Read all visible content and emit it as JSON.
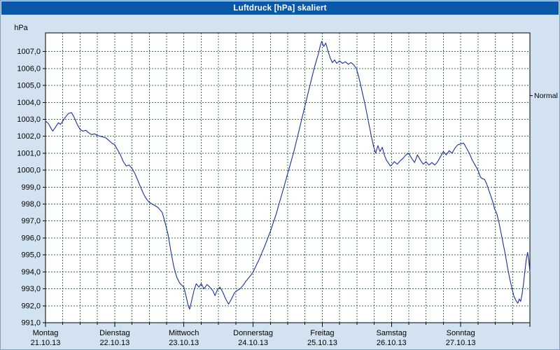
{
  "window": {
    "title": "Luftdruck [hPa] skaliert"
  },
  "colors": {
    "titlebar": "#0b58a8",
    "titlebar_text": "#ffffff",
    "window_bg": "#d2e2f0",
    "window_border": "#7da2c4",
    "plot_bg": "#ffffff",
    "grid": "#35714b",
    "axis": "#000000",
    "line": "#1c2f9e"
  },
  "chart_data": {
    "type": "line",
    "title": "Luftdruck [hPa] skaliert",
    "ylabel": "hPa",
    "ylim": [
      991,
      1008.1
    ],
    "y_tick_step": 1,
    "y_tick_labels": [
      "991,0",
      "992,0",
      "993,0",
      "994,0",
      "995,0",
      "996,0",
      "997,0",
      "998,0",
      "999,0",
      "1000,0",
      "1001,0",
      "1002,0",
      "1003,0",
      "1004,0",
      "1005,0",
      "1006,0",
      "1007,0"
    ],
    "x_range_hours": [
      0,
      168
    ],
    "x_minor_grid_hours": 6,
    "x_day_labels": [
      {
        "name": "Montag",
        "date": "21.10.13"
      },
      {
        "name": "Dienstag",
        "date": "22.10.13"
      },
      {
        "name": "Mittwoch",
        "date": "23.10.13"
      },
      {
        "name": "Donnerstag",
        "date": "24.10.13"
      },
      {
        "name": "Freitag",
        "date": "25.10.13"
      },
      {
        "name": "Samstag",
        "date": "26.10.13"
      },
      {
        "name": "Sonntag",
        "date": "27.10.13"
      }
    ],
    "annotation": {
      "label": "Normal",
      "value": 1004.4
    },
    "grid": true,
    "legend_position": "none",
    "series": [
      {
        "name": "Luftdruck",
        "color": "#1c2f9e",
        "points": [
          [
            0,
            1002.9
          ],
          [
            1,
            1002.75
          ],
          [
            2,
            1002.45
          ],
          [
            2.5,
            1002.3
          ],
          [
            3.5,
            1002.55
          ],
          [
            4.5,
            1002.8
          ],
          [
            5.2,
            1002.7
          ],
          [
            6,
            1002.9
          ],
          [
            7,
            1003.15
          ],
          [
            8,
            1003.35
          ],
          [
            9,
            1003.4
          ],
          [
            10,
            1003.1
          ],
          [
            11,
            1002.7
          ],
          [
            12,
            1002.4
          ],
          [
            13,
            1002.3
          ],
          [
            14,
            1002.35
          ],
          [
            15,
            1002.2
          ],
          [
            16,
            1002.1
          ],
          [
            17,
            1002.15
          ],
          [
            18,
            1002.05
          ],
          [
            19,
            1002.0
          ],
          [
            20,
            1001.95
          ],
          [
            21,
            1001.9
          ],
          [
            22,
            1001.75
          ],
          [
            23,
            1001.6
          ],
          [
            24,
            1001.5
          ],
          [
            25,
            1001.2
          ],
          [
            26,
            1000.9
          ],
          [
            27,
            1000.5
          ],
          [
            28,
            1000.25
          ],
          [
            29,
            1000.3
          ],
          [
            30,
            1000.1
          ],
          [
            31,
            999.8
          ],
          [
            32,
            999.4
          ],
          [
            33,
            999.0
          ],
          [
            34,
            998.6
          ],
          [
            35,
            998.3
          ],
          [
            36,
            998.1
          ],
          [
            37,
            998.0
          ],
          [
            38,
            997.9
          ],
          [
            39,
            997.8
          ],
          [
            40,
            997.6
          ],
          [
            40.5,
            997.5
          ],
          [
            41.5,
            996.9
          ],
          [
            42.5,
            996.2
          ],
          [
            43.5,
            995.2
          ],
          [
            44.5,
            994.3
          ],
          [
            45.5,
            993.7
          ],
          [
            46.5,
            993.35
          ],
          [
            47.3,
            993.2
          ],
          [
            48,
            993.1
          ],
          [
            48.7,
            992.6
          ],
          [
            49.5,
            992.0
          ],
          [
            50,
            991.8
          ],
          [
            50.7,
            992.3
          ],
          [
            51.5,
            992.9
          ],
          [
            52.3,
            993.3
          ],
          [
            53.2,
            993.1
          ],
          [
            54,
            993.3
          ],
          [
            55,
            993.0
          ],
          [
            56,
            993.25
          ],
          [
            57,
            993.1
          ],
          [
            58,
            992.9
          ],
          [
            58.8,
            992.6
          ],
          [
            59.5,
            992.9
          ],
          [
            60.5,
            993.1
          ],
          [
            61.5,
            992.8
          ],
          [
            62.5,
            992.4
          ],
          [
            63.5,
            992.1
          ],
          [
            64.5,
            992.4
          ],
          [
            65.5,
            992.75
          ],
          [
            66.5,
            992.9
          ],
          [
            67.5,
            993.0
          ],
          [
            68.5,
            993.2
          ],
          [
            69.5,
            993.45
          ],
          [
            70.5,
            993.65
          ],
          [
            71.2,
            993.8
          ],
          [
            72,
            994.0
          ],
          [
            73,
            994.35
          ],
          [
            74,
            994.7
          ],
          [
            75,
            995.1
          ],
          [
            76,
            995.5
          ],
          [
            77,
            995.95
          ],
          [
            78,
            996.4
          ],
          [
            79,
            996.9
          ],
          [
            80,
            997.4
          ],
          [
            81,
            998.0
          ],
          [
            82,
            998.6
          ],
          [
            83,
            999.2
          ],
          [
            84,
            999.8
          ],
          [
            85,
            1000.4
          ],
          [
            86,
            1001.0
          ],
          [
            87,
            1001.7
          ],
          [
            88,
            1002.4
          ],
          [
            89,
            1003.1
          ],
          [
            90,
            1003.8
          ],
          [
            91,
            1004.5
          ],
          [
            92,
            1005.2
          ],
          [
            93,
            1005.9
          ],
          [
            94,
            1006.5
          ],
          [
            94.7,
            1006.9
          ],
          [
            95.3,
            1007.35
          ],
          [
            95.8,
            1007.6
          ],
          [
            96.5,
            1007.3
          ],
          [
            97.2,
            1007.5
          ],
          [
            98,
            1007.0
          ],
          [
            98.8,
            1006.6
          ],
          [
            99.5,
            1006.35
          ],
          [
            100.3,
            1006.5
          ],
          [
            101,
            1006.3
          ],
          [
            102,
            1006.45
          ],
          [
            103,
            1006.3
          ],
          [
            104,
            1006.4
          ],
          [
            105,
            1006.25
          ],
          [
            106,
            1006.35
          ],
          [
            107,
            1006.2
          ],
          [
            107.8,
            1006.0
          ],
          [
            108.5,
            1005.6
          ],
          [
            109.2,
            1005.1
          ],
          [
            110,
            1004.5
          ],
          [
            110.8,
            1003.9
          ],
          [
            111.5,
            1003.3
          ],
          [
            112.3,
            1002.6
          ],
          [
            113,
            1002.0
          ],
          [
            113.8,
            1001.4
          ],
          [
            114.5,
            1001.0
          ],
          [
            115.3,
            1001.45
          ],
          [
            116,
            1001.1
          ],
          [
            116.8,
            1001.35
          ],
          [
            117.5,
            1000.9
          ],
          [
            118.2,
            1000.6
          ],
          [
            119,
            1000.4
          ],
          [
            119.6,
            1000.25
          ],
          [
            120,
            1000.3
          ],
          [
            121,
            1000.5
          ],
          [
            122,
            1000.35
          ],
          [
            123,
            1000.55
          ],
          [
            124,
            1000.7
          ],
          [
            125,
            1000.9
          ],
          [
            126,
            1001.0
          ],
          [
            127,
            1000.7
          ],
          [
            128,
            1000.45
          ],
          [
            129,
            1000.9
          ],
          [
            130,
            1000.6
          ],
          [
            131,
            1000.35
          ],
          [
            132,
            1000.5
          ],
          [
            133,
            1000.3
          ],
          [
            134,
            1000.45
          ],
          [
            135,
            1000.3
          ],
          [
            136,
            1000.5
          ],
          [
            137,
            1000.8
          ],
          [
            138,
            1001.1
          ],
          [
            139,
            1000.9
          ],
          [
            140,
            1001.15
          ],
          [
            141,
            1001.0
          ],
          [
            142,
            1001.3
          ],
          [
            143,
            1001.5
          ],
          [
            144,
            1001.55
          ],
          [
            145,
            1001.6
          ],
          [
            146,
            1001.3
          ],
          [
            147,
            1001.0
          ],
          [
            148,
            1000.6
          ],
          [
            149,
            1000.3
          ],
          [
            150,
            1000.0
          ],
          [
            150.8,
            999.6
          ],
          [
            151.5,
            999.5
          ],
          [
            152.3,
            999.45
          ],
          [
            153,
            999.2
          ],
          [
            154,
            998.7
          ],
          [
            155,
            998.2
          ],
          [
            155.8,
            997.7
          ],
          [
            156.5,
            997.45
          ],
          [
            157.3,
            996.9
          ],
          [
            158,
            996.3
          ],
          [
            158.8,
            995.6
          ],
          [
            159.5,
            995.0
          ],
          [
            160.3,
            994.2
          ],
          [
            161,
            993.6
          ],
          [
            161.8,
            993.0
          ],
          [
            162.5,
            992.55
          ],
          [
            163.2,
            992.3
          ],
          [
            163.8,
            992.15
          ],
          [
            164.3,
            992.4
          ],
          [
            164.8,
            992.25
          ],
          [
            165.3,
            992.7
          ],
          [
            165.8,
            993.3
          ],
          [
            166.3,
            994.1
          ],
          [
            166.8,
            994.8
          ],
          [
            167.2,
            995.15
          ],
          [
            167.6,
            994.7
          ],
          [
            168,
            994.0
          ]
        ]
      }
    ]
  }
}
